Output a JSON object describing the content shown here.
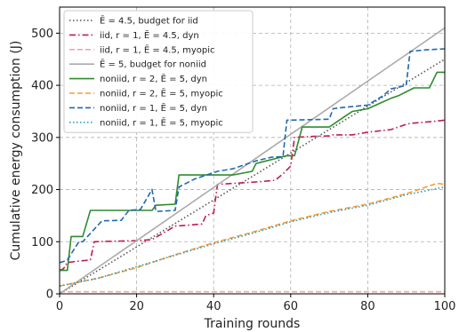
{
  "chart_data": {
    "type": "line",
    "xlabel": "Training rounds",
    "ylabel": "Cumulative energy consumption (J)",
    "xlim": [
      0,
      100
    ],
    "ylim": [
      0,
      550
    ],
    "xticks": [
      "0",
      "20",
      "40",
      "60",
      "80",
      "100"
    ],
    "yticks": [
      "0",
      "100",
      "200",
      "300",
      "400",
      "500"
    ],
    "grid": true,
    "legend_position": "top-left",
    "series": [
      {
        "name": "Ē = 4.5, budget for iid",
        "color": "#555555",
        "style": "dotted",
        "x": [
          0,
          100
        ],
        "y": [
          0,
          450
        ]
      },
      {
        "name": "iid, r = 1, Ē = 4.5, dyn",
        "color": "#c2185b",
        "style": "dashdot",
        "x": [
          0,
          1,
          2,
          4,
          8,
          9,
          20,
          24,
          30,
          34,
          37,
          38,
          40,
          41,
          52,
          56,
          58,
          60,
          61,
          66,
          70,
          71,
          76,
          80,
          86,
          90,
          91,
          96,
          100
        ],
        "y": [
          45,
          48,
          60,
          62,
          65,
          100,
          102,
          104,
          130,
          132,
          134,
          150,
          155,
          210,
          215,
          218,
          230,
          245,
          300,
          302,
          303,
          305,
          305,
          310,
          315,
          325,
          327,
          330,
          333
        ]
      },
      {
        "name": "iid, r = 1, Ē = 4.5, myopic",
        "color": "#f4a3ad",
        "style": "dashed",
        "x": [
          0,
          100
        ],
        "y": [
          4,
          4
        ]
      },
      {
        "name": "Ē = 5, budget for noniid",
        "color": "#aaaaaa",
        "style": "solid",
        "x": [
          0,
          100
        ],
        "y": [
          0,
          510
        ]
      },
      {
        "name": "noniid, r = 2, Ē = 5, dyn",
        "color": "#2e8b2e",
        "style": "solid",
        "x": [
          0,
          2,
          3,
          5,
          6,
          8,
          9,
          11,
          14,
          17,
          20,
          24,
          25,
          30,
          31,
          40,
          44,
          45,
          50,
          51,
          59,
          60,
          61,
          63,
          64,
          70,
          72,
          74,
          76,
          80,
          83,
          86,
          88,
          92,
          96,
          98,
          100
        ],
        "y": [
          45,
          45,
          110,
          110,
          110,
          160,
          160,
          160,
          160,
          160,
          160,
          160,
          170,
          172,
          228,
          228,
          228,
          228,
          235,
          250,
          265,
          265,
          265,
          320,
          320,
          320,
          330,
          340,
          350,
          355,
          365,
          375,
          380,
          395,
          395,
          425,
          425
        ]
      },
      {
        "name": "noniid, r = 2, Ē = 5, myopic",
        "color": "#ff9a2e",
        "style": "dashed",
        "x": [
          0,
          10,
          20,
          30,
          40,
          50,
          60,
          70,
          80,
          90,
          98,
          100
        ],
        "y": [
          15,
          30,
          50,
          75,
          98,
          118,
          140,
          158,
          172,
          192,
          212,
          210
        ]
      },
      {
        "name": "noniid, r = 1, Ē = 5, dyn",
        "color": "#1f68b0",
        "style": "dashed",
        "x": [
          0,
          1,
          2,
          5,
          6,
          11,
          16,
          18,
          21,
          24,
          25,
          30,
          31,
          35,
          41,
          45,
          51,
          55,
          58,
          59,
          70,
          71,
          73,
          80,
          84,
          86,
          90,
          91,
          95,
          100
        ],
        "y": [
          60,
          62,
          65,
          100,
          100,
          140,
          141,
          160,
          162,
          200,
          158,
          160,
          205,
          220,
          235,
          240,
          255,
          262,
          263,
          333,
          335,
          355,
          357,
          362,
          380,
          393,
          400,
          465,
          468,
          470
        ]
      },
      {
        "name": "noniid, r = 1, Ē = 5, myopic",
        "color": "#2a9fc0",
        "style": "dotted",
        "x": [
          0,
          10,
          20,
          30,
          40,
          50,
          60,
          70,
          80,
          90,
          100
        ],
        "y": [
          15,
          30,
          52,
          74,
          96,
          116,
          138,
          156,
          170,
          190,
          205
        ]
      }
    ]
  }
}
